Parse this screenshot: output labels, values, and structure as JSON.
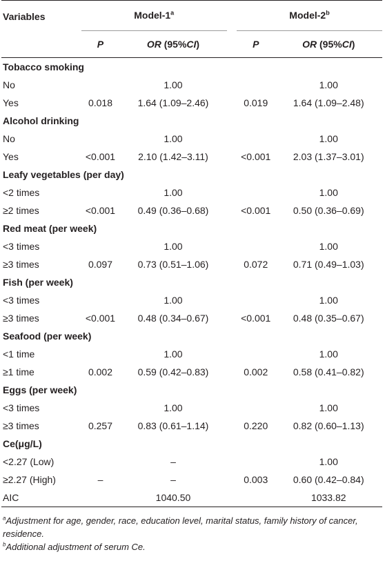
{
  "header": {
    "variables": "Variables",
    "model1": "Model-1",
    "model1_sup": "a",
    "model2": "Model-2",
    "model2_sup": "b",
    "p": "P",
    "or_italic": "OR",
    "or_rest": " (95%",
    "ci_italic": "CI",
    "close": ")"
  },
  "rows": [
    {
      "label": "Tobacco smoking",
      "section": true
    },
    {
      "label": "No",
      "p1": "",
      "or1": "1.00",
      "p2": "",
      "or2": "1.00"
    },
    {
      "label": "Yes",
      "p1": "0.018",
      "or1": "1.64 (1.09–2.46)",
      "p2": "0.019",
      "or2": "1.64 (1.09–2.48)"
    },
    {
      "label": "Alcohol drinking",
      "section": true
    },
    {
      "label": "No",
      "p1": "",
      "or1": "1.00",
      "p2": "",
      "or2": "1.00"
    },
    {
      "label": "Yes",
      "p1": "<0.001",
      "or1": "2.10 (1.42–3.11)",
      "p2": "<0.001",
      "or2": "2.03 (1.37–3.01)"
    },
    {
      "label": "Leafy vegetables (per day)",
      "section": true
    },
    {
      "label": "<2 times",
      "p1": "",
      "or1": "1.00",
      "p2": "",
      "or2": "1.00"
    },
    {
      "label": "≥2 times",
      "p1": "<0.001",
      "or1": "0.49 (0.36–0.68)",
      "p2": "<0.001",
      "or2": "0.50 (0.36–0.69)"
    },
    {
      "label": "Red meat (per week)",
      "section": true
    },
    {
      "label": "<3 times",
      "p1": "",
      "or1": "1.00",
      "p2": "",
      "or2": "1.00"
    },
    {
      "label": "≥3 times",
      "p1": "0.097",
      "or1": "0.73 (0.51–1.06)",
      "p2": "0.072",
      "or2": "0.71 (0.49–1.03)"
    },
    {
      "label": "Fish (per week)",
      "section": true
    },
    {
      "label": "<3 times",
      "p1": "",
      "or1": "1.00",
      "p2": "",
      "or2": "1.00"
    },
    {
      "label": "≥3 times",
      "p1": "<0.001",
      "or1": "0.48 (0.34–0.67)",
      "p2": "<0.001",
      "or2": "0.48 (0.35–0.67)"
    },
    {
      "label": "Seafood (per week)",
      "section": true
    },
    {
      "label": "<1 time",
      "p1": "",
      "or1": "1.00",
      "p2": "",
      "or2": "1.00"
    },
    {
      "label": "≥1 time",
      "p1": "0.002",
      "or1": "0.59 (0.42–0.83)",
      "p2": "0.002",
      "or2": "0.58 (0.41–0.82)"
    },
    {
      "label": "Eggs (per week)",
      "section": true
    },
    {
      "label": "<3 times",
      "p1": "",
      "or1": "1.00",
      "p2": "",
      "or2": "1.00"
    },
    {
      "label": "≥3 times",
      "p1": "0.257",
      "or1": "0.83 (0.61–1.14)",
      "p2": "0.220",
      "or2": "0.82 (0.60–1.13)"
    },
    {
      "label": "Ce(μg/L)",
      "section": true
    },
    {
      "label": "<2.27 (Low)",
      "p1": "",
      "or1": "–",
      "p2": "",
      "or2": "1.00"
    },
    {
      "label": "≥2.27 (High)",
      "p1": "–",
      "or1": "–",
      "p2": "0.003",
      "or2": "0.60 (0.42–0.84)"
    },
    {
      "label": "AIC",
      "p1": "",
      "or1": "1040.50",
      "p2": "",
      "or2": "1033.82",
      "last": true
    }
  ],
  "notes": {
    "a_sup": "a",
    "a_text": "Adjustment for age, gender, race, education level, marital status, family history of cancer, residence.",
    "b_sup": "b",
    "b_text": "Additional adjustment of serum Ce."
  }
}
